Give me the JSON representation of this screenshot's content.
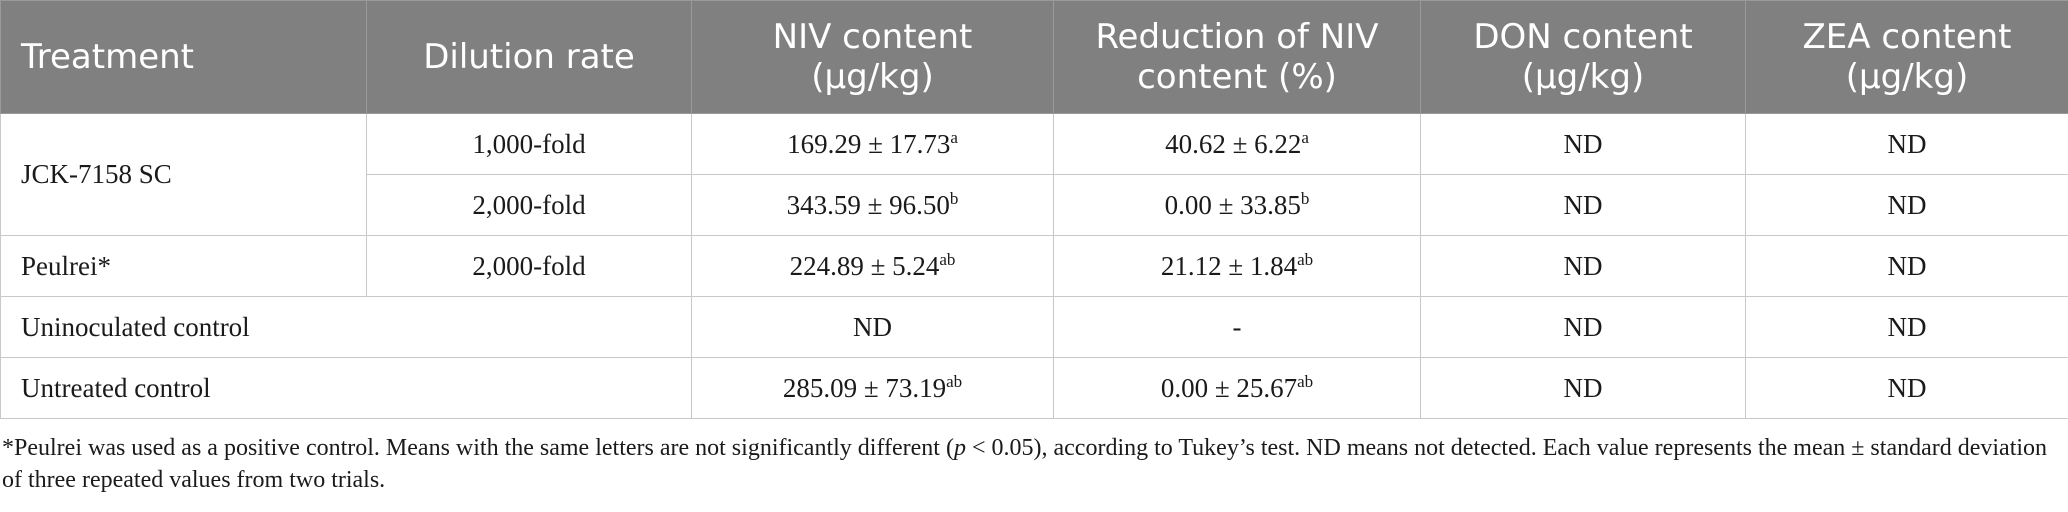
{
  "table": {
    "headers": {
      "treatment": "Treatment",
      "dilution_rate": "Dilution rate",
      "niv_content_line1": "NIV content",
      "niv_content_line2": "(μg/kg)",
      "reduction_line1": "Reduction of NIV",
      "reduction_line2": "content (%)",
      "don_line1": "DON content",
      "don_line2": "(μg/kg)",
      "zea_line1": "ZEA content",
      "zea_line2": "(μg/kg)"
    },
    "rows": {
      "jck": {
        "treatment": "JCK-7158 SC",
        "r1": {
          "dilution": "1,000-fold",
          "niv": "169.29 ± 17.73",
          "niv_sup": "a",
          "reduction": "40.62 ± 6.22",
          "reduction_sup": "a",
          "don": "ND",
          "zea": "ND"
        },
        "r2": {
          "dilution": "2,000-fold",
          "niv": "343.59 ± 96.50",
          "niv_sup": "b",
          "reduction": "0.00 ± 33.85",
          "reduction_sup": "b",
          "don": "ND",
          "zea": "ND"
        }
      },
      "peulrei": {
        "treatment": "Peulrei*",
        "dilution": "2,000-fold",
        "niv": "224.89 ± 5.24",
        "niv_sup": "ab",
        "reduction": "21.12 ± 1.84",
        "reduction_sup": "ab",
        "don": "ND",
        "zea": "ND"
      },
      "uninoculated": {
        "treatment": "Uninoculated control",
        "niv": "ND",
        "reduction": "-",
        "don": "ND",
        "zea": "ND"
      },
      "untreated": {
        "treatment": "Untreated control",
        "niv": "285.09 ± 73.19",
        "niv_sup": "ab",
        "reduction": "0.00 ± 25.67",
        "reduction_sup": "ab",
        "don": "ND",
        "zea": "ND"
      }
    }
  },
  "footnote": {
    "part1": "*Peulrei was used as a positive control. Means with the same letters are not significantly different (",
    "p_symbol": "p",
    "part2": " < 0.05), according to Tukey’s test. ND means not detected. Each value represents the mean ± standard deviation of three repeated values from two trials."
  }
}
